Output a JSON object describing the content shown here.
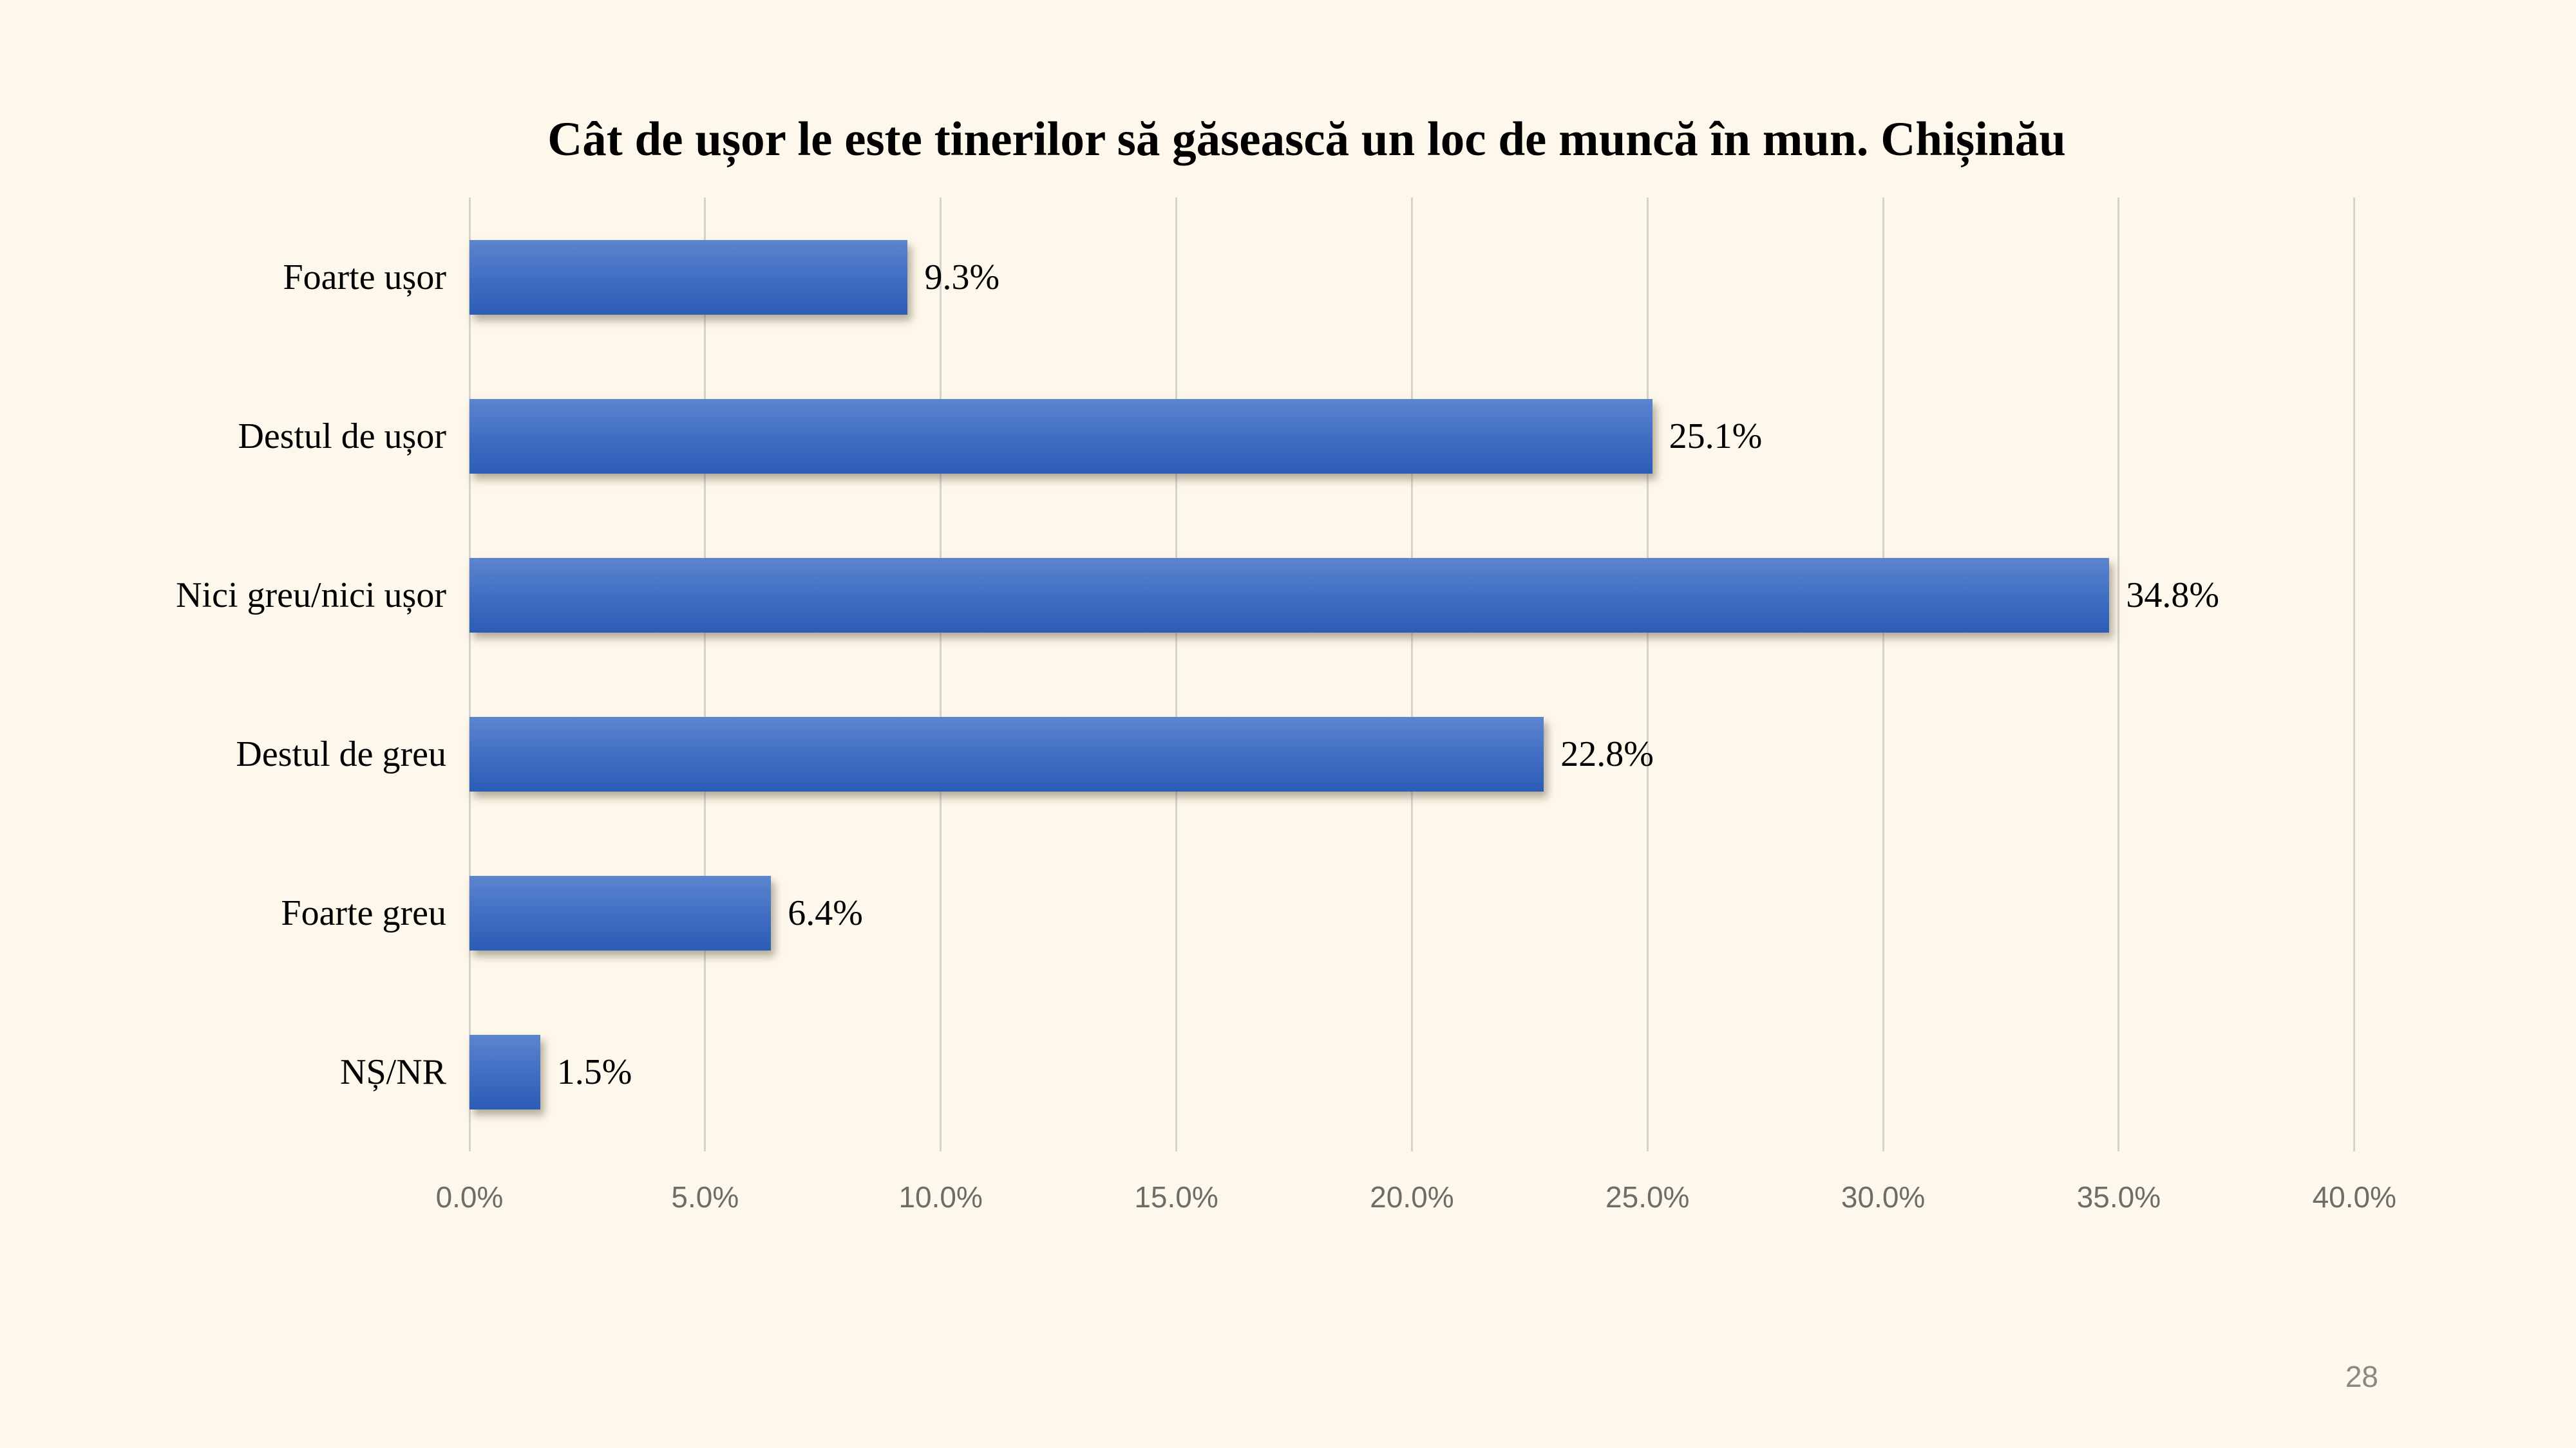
{
  "slide": {
    "page_number": "28"
  },
  "chart_data": {
    "type": "bar",
    "orientation": "horizontal",
    "title": "Cât de ușor le este tinerilor să găsească un loc de muncă în mun. Chișinău",
    "categories": [
      "Foarte ușor",
      "Destul de ușor",
      "Nici greu/nici ușor",
      "Destul de greu",
      "Foarte greu",
      "NȘ/NR"
    ],
    "values": [
      9.3,
      25.1,
      34.8,
      22.8,
      6.4,
      1.5
    ],
    "value_labels": [
      "9.3%",
      "25.1%",
      "34.8%",
      "22.8%",
      "6.4%",
      "1.5%"
    ],
    "xlabel": "",
    "ylabel": "",
    "xlim": [
      0,
      40
    ],
    "x_ticks": [
      0,
      5,
      10,
      15,
      20,
      25,
      30,
      35,
      40
    ],
    "x_tick_labels": [
      "0.0%",
      "5.0%",
      "10.0%",
      "15.0%",
      "20.0%",
      "25.0%",
      "30.0%",
      "35.0%",
      "40.0%"
    ],
    "grid": "vertical gridlines only",
    "legend": "none",
    "data_labels": "outside end"
  },
  "colors": {
    "background": "#FDF8EB",
    "text": "#000000",
    "bar_gradient_top": "#5D85CF",
    "bar_gradient_mid": "#3E6DC2",
    "bar_gradient_bottom": "#2D5CB5",
    "bar_shadow": "rgba(120,110,88,0.55)",
    "gridline": "#D6D3CC",
    "tick_text": "#6E6C67",
    "page_number_text": "#8A8883"
  }
}
